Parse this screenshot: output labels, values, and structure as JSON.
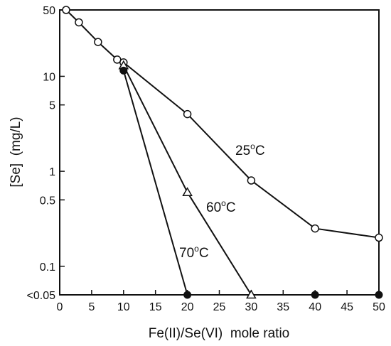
{
  "chart_data": {
    "type": "line",
    "xlabel": "Fe(II)/Se(VI)  mole ratio",
    "ylabel": "[Se]  (mg/L)",
    "xlim": [
      0,
      50
    ],
    "ylim": [
      0.05,
      50
    ],
    "y_scale": "log",
    "x_ticks": [
      0,
      5,
      10,
      15,
      20,
      25,
      30,
      35,
      40,
      45,
      50
    ],
    "x_tick_labels": [
      "0",
      "5",
      "10",
      "15",
      "20",
      "25",
      "30",
      "35",
      "40",
      "45",
      "50"
    ],
    "y_ticks": [
      {
        "value": 50,
        "label": "50"
      },
      {
        "value": 10,
        "label": "10"
      },
      {
        "value": 5,
        "label": "5"
      },
      {
        "value": 1,
        "label": "1"
      },
      {
        "value": 0.5,
        "label": "0.5"
      },
      {
        "value": 0.1,
        "label": "0.1"
      },
      {
        "value": 0.05,
        "label": "<0.05"
      }
    ],
    "series": [
      {
        "name": "25°C",
        "label_main": "25",
        "label_sup": "o",
        "label_unit": "C",
        "marker": "open-circle",
        "x": [
          1,
          3,
          6,
          9,
          10,
          20,
          30,
          40,
          50
        ],
        "y": [
          50,
          37,
          23,
          15,
          14,
          4,
          0.8,
          0.25,
          0.2
        ]
      },
      {
        "name": "60°C",
        "label_main": "60",
        "label_sup": "o",
        "label_unit": "C",
        "marker": "open-triangle",
        "x": [
          10,
          20,
          30
        ],
        "y": [
          13,
          0.6,
          0.05
        ]
      },
      {
        "name": "70°C",
        "label_main": "70",
        "label_sup": "o",
        "label_unit": "C",
        "marker": "filled-circle",
        "x": [
          10,
          20
        ],
        "y": [
          11.5,
          0.05
        ]
      },
      {
        "name": "",
        "marker": "filled-circle",
        "x": [
          40,
          50
        ],
        "y": [
          0.05,
          0.05
        ],
        "connect": false
      }
    ],
    "grid": false,
    "legend": "none"
  }
}
